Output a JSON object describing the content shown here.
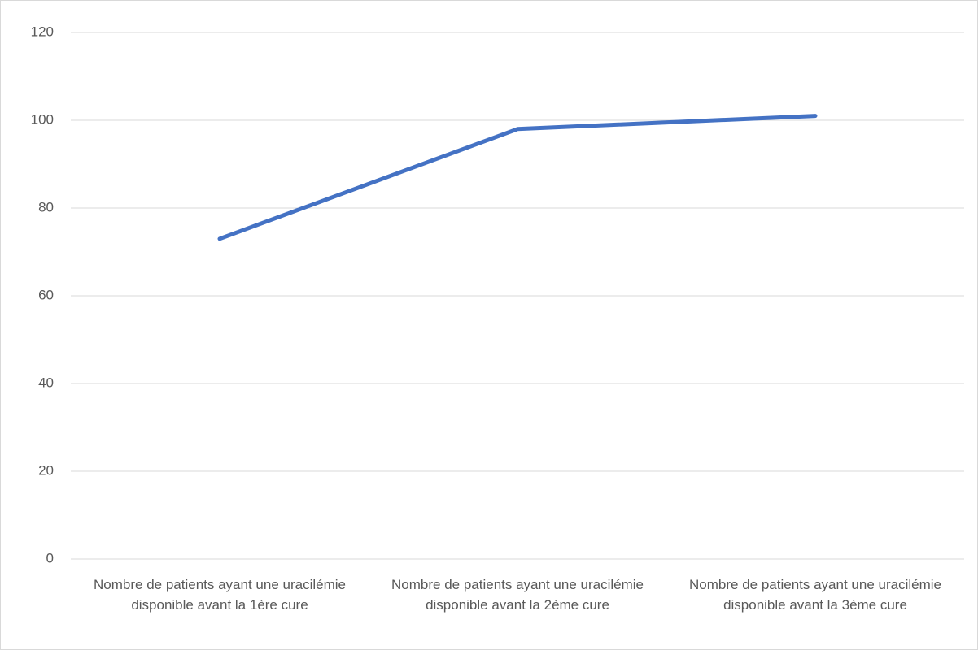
{
  "chart_data": {
    "type": "line",
    "categories": [
      "Nombre de patients ayant une uracilémie disponible avant la 1ère cure",
      "Nombre de patients ayant une uracilémie disponible avant la 2ème cure",
      "Nombre de patients ayant une uracilémie disponible avant la 3ème cure"
    ],
    "values": [
      73,
      98,
      101
    ],
    "color": "#4472c4",
    "ylim": [
      0,
      120
    ],
    "yticks": [
      0,
      20,
      40,
      60,
      80,
      100,
      120
    ],
    "grid": true
  }
}
